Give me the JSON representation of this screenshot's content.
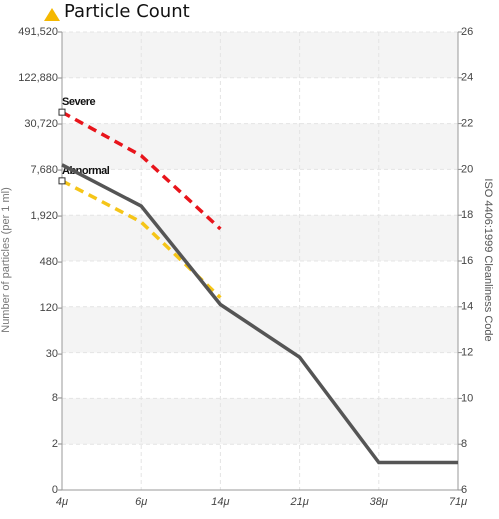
{
  "chart_data": {
    "type": "line",
    "title": "Particle Count",
    "y_label": "Number of particles (per 1 ml)",
    "y2_label": "ISO 4406:1999 Cleanliness Code",
    "categories": [
      "4μ",
      "6μ",
      "14μ",
      "21μ",
      "38μ",
      "71μ"
    ],
    "y_scale": "log",
    "ylim": [
      0.5,
      491520
    ],
    "yticks": [
      0,
      2,
      8,
      30,
      120,
      480,
      {
        "value": 1920,
        "label": "1,920"
      },
      {
        "value": 7680,
        "label": "7,680"
      },
      {
        "value": 30720,
        "label": "30,720"
      },
      {
        "value": 122880,
        "label": "122,880"
      },
      {
        "value": 491520,
        "label": "491,520"
      }
    ],
    "y2lim": [
      6,
      26
    ],
    "y2ticks": [
      6,
      8,
      10,
      12,
      14,
      16,
      18,
      20,
      22,
      24,
      26
    ],
    "grid": true,
    "series": [
      {
        "name": "Severe",
        "color": "#e8141b",
        "dashed": true,
        "axis": "y2",
        "values": [
          22.5,
          20.6,
          17.4,
          null,
          null,
          null
        ]
      },
      {
        "name": "Abnormal",
        "color": "#f5c518",
        "dashed": true,
        "axis": "y2",
        "values": [
          19.5,
          17.7,
          14.4,
          null,
          null,
          null
        ]
      },
      {
        "name": null,
        "color": "#555555",
        "dashed": false,
        "axis": "y2",
        "values": [
          20.2,
          18.4,
          14.1,
          11.8,
          7.2,
          7.2
        ]
      }
    ]
  }
}
